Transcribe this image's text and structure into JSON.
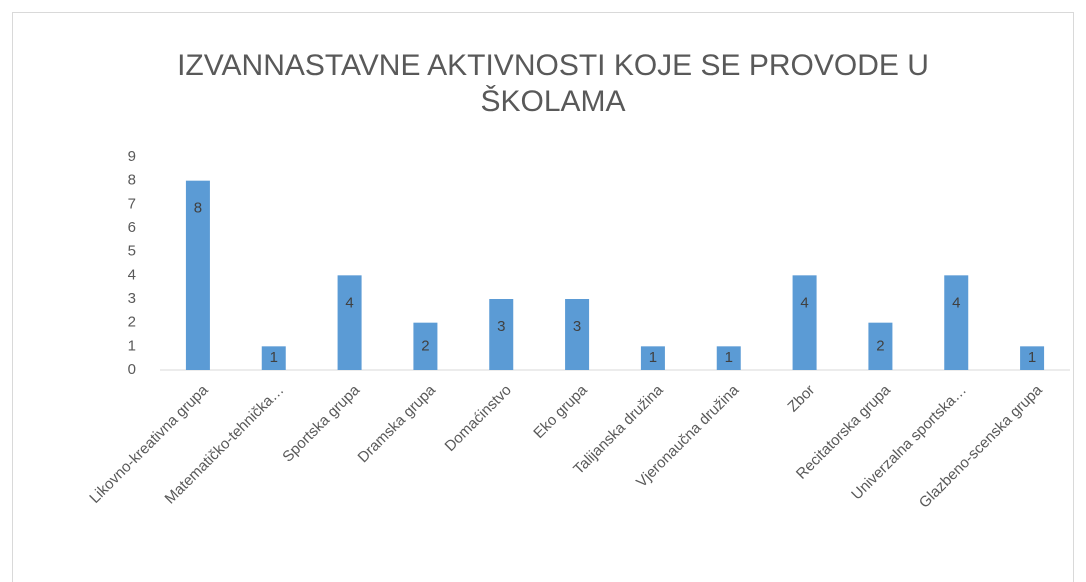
{
  "chart_data": {
    "type": "bar",
    "title": "IZVANNASTAVNE AKTIVNOSTI KOJE SE PROVODE U ŠKOLAMA",
    "categories": [
      "Likovno-kreativna grupa",
      "Matematičko-tehnička…",
      "Sportska grupa",
      "Dramska grupa",
      "Domaćinstvo",
      "Eko grupa",
      "Talijanska družina",
      "Vjeronaučna družina",
      "Zbor",
      "Recitatorska grupa",
      "Univerzalna sportska…",
      "Glazbeno-scenska grupa"
    ],
    "values": [
      8,
      1,
      4,
      2,
      3,
      3,
      1,
      1,
      4,
      2,
      4,
      1
    ],
    "color": "#5b9bd5",
    "ylim": [
      0,
      9
    ],
    "yticks": [
      0,
      1,
      2,
      3,
      4,
      5,
      6,
      7,
      8,
      9
    ],
    "grid": false
  }
}
